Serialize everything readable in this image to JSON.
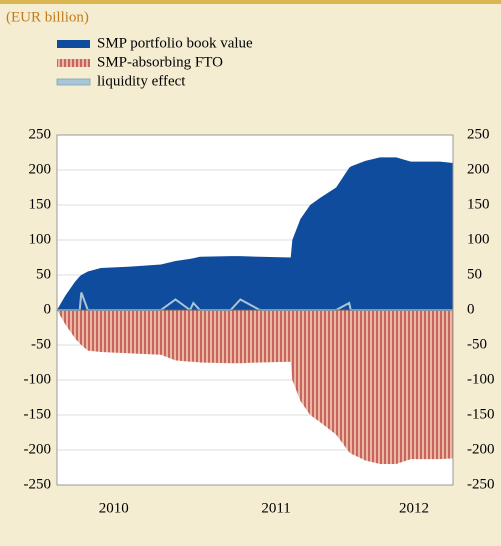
{
  "chart_data": {
    "type": "area",
    "subtitle": "(EUR billion)",
    "x": [
      2010.15,
      2010.2,
      2010.26,
      2010.29,
      2010.3,
      2010.34,
      2010.42,
      2010.6,
      2010.79,
      2010.88,
      2010.97,
      2010.99,
      2011.03,
      2011.22,
      2011.28,
      2011.4,
      2011.59,
      2011.6,
      2011.65,
      2011.71,
      2011.77,
      2011.87,
      2011.95,
      2011.96,
      2012.05,
      2012.14,
      2012.24,
      2012.33,
      2012.51,
      2012.59
    ],
    "series": [
      {
        "name": "SMP portfolio book value",
        "color": "#0f4c9e",
        "style": "area",
        "values": [
          0,
          20,
          40,
          48,
          50,
          55,
          60,
          62,
          65,
          70,
          73,
          74,
          76,
          77,
          77,
          76,
          75,
          100,
          130,
          150,
          160,
          175,
          203,
          205,
          213,
          218,
          218,
          212,
          212,
          210
        ]
      },
      {
        "name": "SMP-absorbing FTO",
        "color": "#c0504d",
        "style": "hatched-area",
        "values": [
          0,
          -20,
          -40,
          -48,
          -50,
          -58,
          -60,
          -62,
          -64,
          -72,
          -74,
          -74,
          -75,
          -76,
          -76,
          -75,
          -74,
          -100,
          -130,
          -150,
          -160,
          -178,
          -203,
          -205,
          -215,
          -220,
          -220,
          -213,
          -213,
          -212
        ]
      },
      {
        "name": "liquidity effect",
        "color": "#a9c6d6",
        "style": "line",
        "values": [
          0,
          0,
          0,
          0,
          25,
          0,
          0,
          0,
          0,
          15,
          0,
          10,
          0,
          0,
          15,
          0,
          0,
          0,
          0,
          0,
          0,
          0,
          10,
          0,
          0,
          0,
          0,
          0,
          0,
          0
        ]
      }
    ],
    "xlim": [
      2010.15,
      2012.59
    ],
    "xticks": [
      {
        "value": 2010.5,
        "label": "2010"
      },
      {
        "value": 2011.5,
        "label": "2011"
      },
      {
        "value": 2012.35,
        "label": "2012"
      }
    ],
    "ylim": [
      -250,
      250
    ],
    "yticks": [
      -250,
      -200,
      -150,
      -100,
      -50,
      0,
      50,
      100,
      150,
      200,
      250
    ],
    "grid": true
  }
}
